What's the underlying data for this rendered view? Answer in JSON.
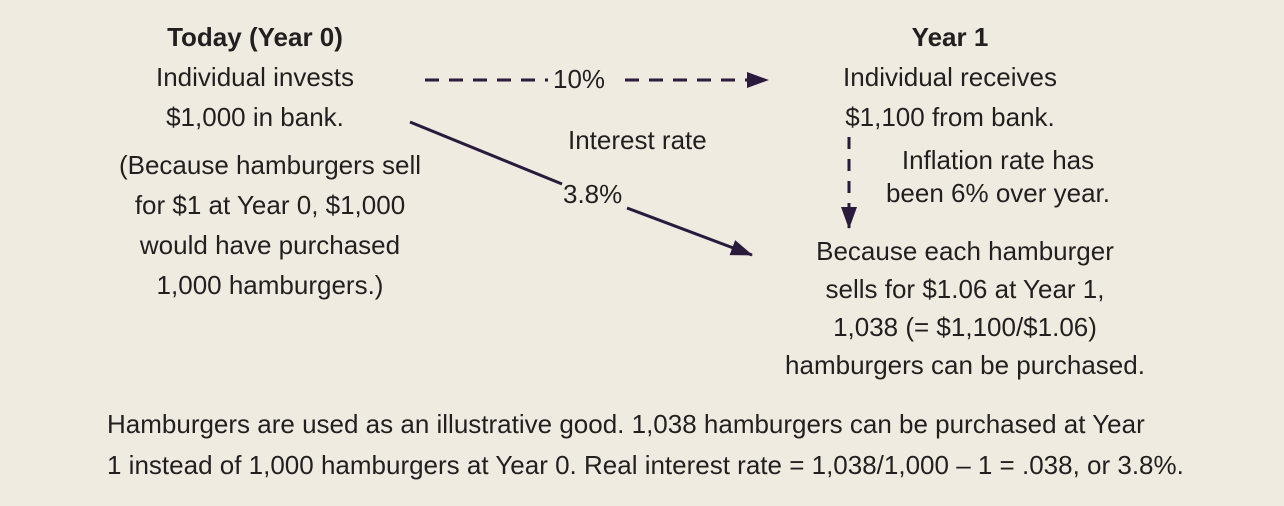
{
  "colors": {
    "background": "#efebe0",
    "text": "#231f20",
    "arrow": "#2a1a3c"
  },
  "today": {
    "heading": "Today (Year 0)",
    "lines": [
      "Individual invests",
      "$1,000 in bank."
    ],
    "note_lines": [
      "(Because hamburgers sell",
      "for $1 at Year 0, $1,000",
      "would have purchased",
      "1,000 hamburgers.)"
    ]
  },
  "year1": {
    "heading": "Year 1",
    "lines": [
      "Individual receives",
      "$1,100 from bank."
    ]
  },
  "inflation": {
    "lines": [
      "Inflation rate has",
      "been 6% over year."
    ]
  },
  "result": {
    "lines": [
      "Because each hamburger",
      "sells for $1.06 at Year 1,",
      "1,038 (= $1,100/$1.06)",
      "hamburgers can be purchased."
    ]
  },
  "arrows": {
    "nominal_rate": "10%",
    "interest_rate_label": "Interest rate",
    "real_rate": "3.8%"
  },
  "footer": {
    "lines": [
      "Hamburgers are used as an illustrative good. 1,038 hamburgers can be purchased at Year",
      "1 instead of 1,000 hamburgers at Year 0. Real interest rate = 1,038/1,000 – 1 = .038, or 3.8%."
    ]
  }
}
